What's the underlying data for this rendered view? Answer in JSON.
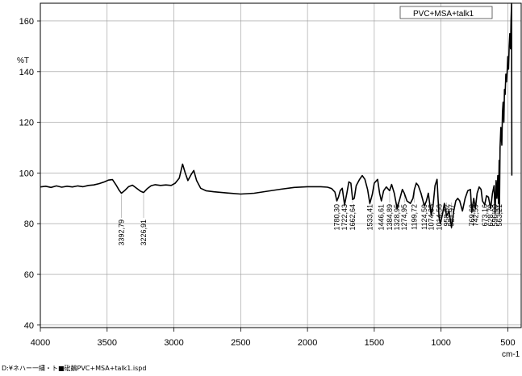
{
  "footer_path": "D:¥ネハー一繍・ト■砒鶺PVC+MSA+talk1.ispd",
  "chart_data": {
    "type": "line",
    "legend": "PVC+MSA+talk1",
    "legend_position": "top-right",
    "ylabel": "%T",
    "xlabel": "cm-1",
    "xlim": [
      4000,
      400
    ],
    "ylim": [
      39,
      167
    ],
    "x_ticks": [
      4000,
      3500,
      3000,
      2500,
      2000,
      1500,
      1000,
      500
    ],
    "y_ticks": [
      40,
      60,
      80,
      100,
      120,
      140,
      160
    ],
    "grid": true,
    "line_color": "#000000",
    "series": [
      {
        "name": "PVC+MSA+talk1",
        "points": [
          [
            4000,
            94.5
          ],
          [
            3960,
            94.8
          ],
          [
            3920,
            94.3
          ],
          [
            3880,
            94.9
          ],
          [
            3840,
            94.4
          ],
          [
            3800,
            94.8
          ],
          [
            3760,
            94.5
          ],
          [
            3720,
            94.9
          ],
          [
            3680,
            94.6
          ],
          [
            3640,
            95.1
          ],
          [
            3600,
            95.3
          ],
          [
            3560,
            95.8
          ],
          [
            3520,
            96.5
          ],
          [
            3490,
            97.2
          ],
          [
            3460,
            97.4
          ],
          [
            3430,
            95.0
          ],
          [
            3410,
            93.2
          ],
          [
            3393,
            92.0
          ],
          [
            3370,
            93.0
          ],
          [
            3340,
            94.6
          ],
          [
            3310,
            95.2
          ],
          [
            3280,
            94.0
          ],
          [
            3250,
            92.8
          ],
          [
            3227,
            92.3
          ],
          [
            3200,
            93.8
          ],
          [
            3170,
            95.0
          ],
          [
            3140,
            95.4
          ],
          [
            3100,
            95.1
          ],
          [
            3060,
            95.3
          ],
          [
            3020,
            95.1
          ],
          [
            2990,
            96.0
          ],
          [
            2960,
            98.0
          ],
          [
            2935,
            103.5
          ],
          [
            2915,
            100.0
          ],
          [
            2895,
            97.0
          ],
          [
            2870,
            99.5
          ],
          [
            2851,
            101.0
          ],
          [
            2830,
            97.0
          ],
          [
            2800,
            94.0
          ],
          [
            2760,
            93.0
          ],
          [
            2700,
            92.6
          ],
          [
            2600,
            92.1
          ],
          [
            2500,
            91.7
          ],
          [
            2400,
            92.0
          ],
          [
            2300,
            92.8
          ],
          [
            2200,
            93.6
          ],
          [
            2100,
            94.3
          ],
          [
            2000,
            94.6
          ],
          [
            1900,
            94.6
          ],
          [
            1850,
            94.4
          ],
          [
            1820,
            93.9
          ],
          [
            1795,
            92.5
          ],
          [
            1780,
            89.0
          ],
          [
            1768,
            90.5
          ],
          [
            1755,
            93.0
          ],
          [
            1740,
            94.0
          ],
          [
            1722,
            87.5
          ],
          [
            1705,
            92.0
          ],
          [
            1690,
            96.5
          ],
          [
            1675,
            96.0
          ],
          [
            1662,
            89.5
          ],
          [
            1650,
            90.0
          ],
          [
            1635,
            95.0
          ],
          [
            1610,
            97.5
          ],
          [
            1590,
            99.0
          ],
          [
            1570,
            97.5
          ],
          [
            1550,
            93.5
          ],
          [
            1533,
            88.0
          ],
          [
            1515,
            91.5
          ],
          [
            1500,
            96.0
          ],
          [
            1475,
            97.5
          ],
          [
            1460,
            92.0
          ],
          [
            1447,
            89.0
          ],
          [
            1430,
            93.0
          ],
          [
            1410,
            94.5
          ],
          [
            1385,
            93.0
          ],
          [
            1370,
            95.5
          ],
          [
            1350,
            92.0
          ],
          [
            1329,
            86.0
          ],
          [
            1310,
            89.5
          ],
          [
            1290,
            93.5
          ],
          [
            1275,
            92.0
          ],
          [
            1255,
            89.0
          ],
          [
            1230,
            88.0
          ],
          [
            1210,
            90.0
          ],
          [
            1200,
            93.5
          ],
          [
            1185,
            96.0
          ],
          [
            1170,
            95.0
          ],
          [
            1150,
            92.0
          ],
          [
            1125,
            87.0
          ],
          [
            1110,
            89.0
          ],
          [
            1095,
            92.0
          ],
          [
            1074,
            83.5
          ],
          [
            1060,
            87.0
          ],
          [
            1045,
            95.0
          ],
          [
            1030,
            97.5
          ],
          [
            1015,
            82.5
          ],
          [
            1005,
            80.0
          ],
          [
            990,
            83.5
          ],
          [
            975,
            88.0
          ],
          [
            959,
            83.0
          ],
          [
            940,
            85.0
          ],
          [
            922,
            78.5
          ],
          [
            905,
            85.0
          ],
          [
            890,
            89.0
          ],
          [
            875,
            90.0
          ],
          [
            860,
            89.0
          ],
          [
            840,
            85.0
          ],
          [
            820,
            90.0
          ],
          [
            800,
            93.0
          ],
          [
            780,
            93.5
          ],
          [
            770,
            84.5
          ],
          [
            755,
            90.0
          ],
          [
            743,
            86.0
          ],
          [
            730,
            92.0
          ],
          [
            715,
            94.5
          ],
          [
            700,
            93.5
          ],
          [
            690,
            89.0
          ],
          [
            673,
            87.5
          ],
          [
            660,
            91.0
          ],
          [
            645,
            90.5
          ],
          [
            629,
            86.0
          ],
          [
            615,
            92.0
          ],
          [
            603,
            95.0
          ],
          [
            596,
            84.0
          ],
          [
            588,
            97.0
          ],
          [
            582,
            90.0
          ],
          [
            575,
            99.0
          ],
          [
            570,
            88.0
          ],
          [
            565,
            105.0
          ],
          [
            563,
            84.0
          ],
          [
            558,
            110.0
          ],
          [
            552,
            118.0
          ],
          [
            545,
            111.0
          ],
          [
            540,
            124.0
          ],
          [
            535,
            128.0
          ],
          [
            530,
            120.0
          ],
          [
            525,
            133.0
          ],
          [
            520,
            131.0
          ],
          [
            515,
            139.0
          ],
          [
            510,
            136.0
          ],
          [
            505,
            140.0
          ],
          [
            500,
            146.0
          ],
          [
            495,
            141.0
          ],
          [
            490,
            150.0
          ],
          [
            485,
            155.0
          ],
          [
            480,
            149.0
          ],
          [
            476,
            160.0
          ],
          [
            472,
            167.0
          ],
          [
            470,
            99.0
          ]
        ]
      }
    ],
    "annotations": [
      {
        "x": 3392.79,
        "y": 92.0,
        "label": "3392,79"
      },
      {
        "x": 3226.91,
        "y": 92.3,
        "label": "3226,91"
      },
      {
        "x": 1780.3,
        "y": 89.0,
        "label": "1780,30"
      },
      {
        "x": 1722.43,
        "y": 87.5,
        "label": "1722,43"
      },
      {
        "x": 1662.64,
        "y": 89.5,
        "label": "1662,64"
      },
      {
        "x": 1533.41,
        "y": 88.0,
        "label": "1533,41"
      },
      {
        "x": 1446.61,
        "y": 89.0,
        "label": "1446,61"
      },
      {
        "x": 1384.89,
        "y": 93.0,
        "label": "1384,89"
      },
      {
        "x": 1328.95,
        "y": 86.0,
        "label": "1328,95"
      },
      {
        "x": 1274.95,
        "y": 92.0,
        "label": "1274,95"
      },
      {
        "x": 1199.72,
        "y": 93.5,
        "label": "1199,72"
      },
      {
        "x": 1124.5,
        "y": 87.0,
        "label": "1124,50"
      },
      {
        "x": 1074.35,
        "y": 83.5,
        "label": "1074,35"
      },
      {
        "x": 1014.56,
        "y": 82.5,
        "label": "1014,56"
      },
      {
        "x": 958.62,
        "y": 83.0,
        "label": "958,62"
      },
      {
        "x": 921.97,
        "y": 78.5,
        "label": "921,97"
      },
      {
        "x": 769.6,
        "y": 84.5,
        "label": "769,60"
      },
      {
        "x": 742.59,
        "y": 86.0,
        "label": "742,59"
      },
      {
        "x": 673.16,
        "y": 87.5,
        "label": "673,16"
      },
      {
        "x": 628.79,
        "y": 86.0,
        "label": "628,79"
      },
      {
        "x": 596.0,
        "y": 84.0,
        "label": "596,00"
      },
      {
        "x": 563.21,
        "y": 84.0,
        "label": "563,21"
      }
    ]
  }
}
